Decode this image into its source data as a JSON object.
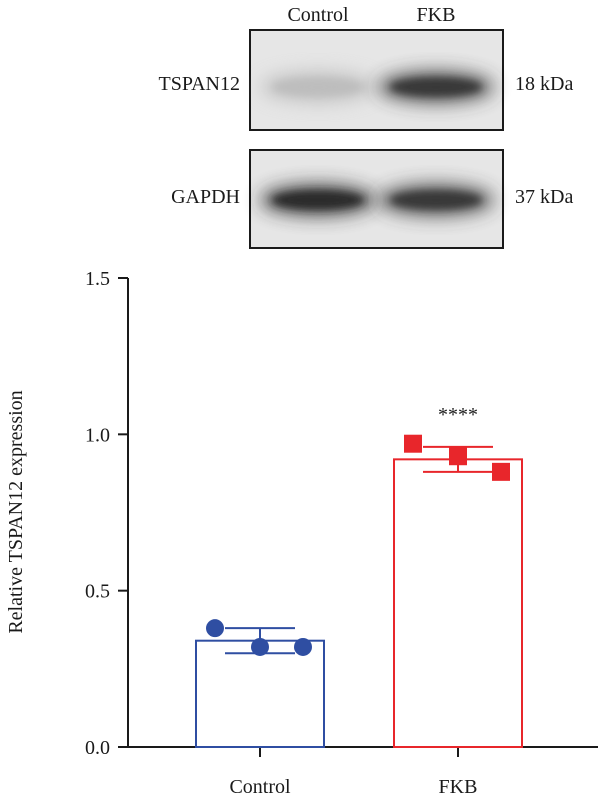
{
  "blot": {
    "lanes": [
      "Control",
      "FKB"
    ],
    "rows": [
      {
        "protein": "TSPAN12",
        "weight": "18 kDa",
        "band_intensity": [
          0.18,
          0.85
        ]
      },
      {
        "protein": "GAPDH",
        "weight": "37 kDa",
        "band_intensity": [
          0.92,
          0.85
        ]
      }
    ]
  },
  "chart_data": {
    "type": "bar",
    "categories": [
      "Control",
      "FKB"
    ],
    "ylabel": "Relative TSPAN12 expression",
    "xlabel": "",
    "ylim": [
      0,
      1.5
    ],
    "yticks": [
      "0.0",
      "0.5",
      "1.0",
      "1.5"
    ],
    "yticks_values": [
      0,
      0.5,
      1.0,
      1.5
    ],
    "series": [
      {
        "category": "Control",
        "mean": 0.34,
        "sd": 0.04,
        "points": [
          0.38,
          0.32,
          0.32
        ],
        "marker": "circle",
        "color": "#2f4ea2"
      },
      {
        "category": "FKB",
        "mean": 0.92,
        "sd": 0.04,
        "points": [
          0.97,
          0.93,
          0.88
        ],
        "marker": "square",
        "color": "#e8262b"
      }
    ],
    "annotations": [
      {
        "category": "FKB",
        "text": "****"
      }
    ]
  }
}
